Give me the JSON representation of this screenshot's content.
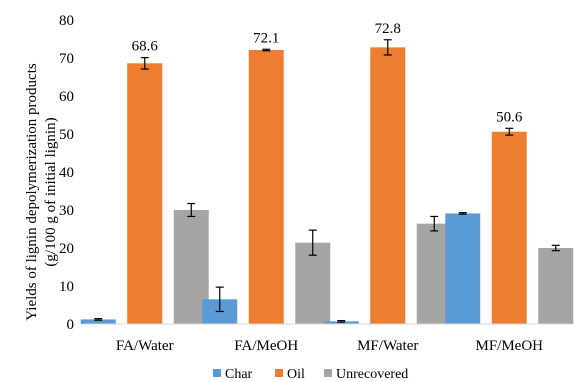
{
  "chart_data": {
    "type": "bar",
    "title": "",
    "xlabel": "",
    "ylabel_line1": "Yields of lignin depolymerization products",
    "ylabel_line2": "(g/100 g of initial lignin)",
    "ylim": [
      0,
      80
    ],
    "yticks": [
      0,
      10,
      20,
      30,
      40,
      50,
      60,
      70,
      80
    ],
    "grid": false,
    "legend_position": "bottom",
    "categories": [
      "FA/Water",
      "FA/MeOH",
      "MF/Water",
      "MF/MeOH"
    ],
    "series": [
      {
        "name": "Char",
        "color": "#5B9BD5",
        "values": [
          1.2,
          6.5,
          0.7,
          29.1
        ],
        "errors": [
          0.2,
          3.2,
          0.2,
          0.2
        ]
      },
      {
        "name": "Oil",
        "color": "#ED7D31",
        "values": [
          68.6,
          72.1,
          72.8,
          50.6
        ],
        "errors": [
          1.5,
          0.2,
          2.0,
          0.9
        ]
      },
      {
        "name": "Unrecovered",
        "color": "#A5A5A5",
        "values": [
          30.0,
          21.4,
          26.4,
          20.0
        ],
        "errors": [
          1.7,
          3.3,
          1.9,
          0.7
        ]
      }
    ],
    "data_labels": {
      "series": "Oil",
      "labels": [
        "68.6",
        "72.1",
        "72.8",
        "50.6"
      ]
    }
  }
}
